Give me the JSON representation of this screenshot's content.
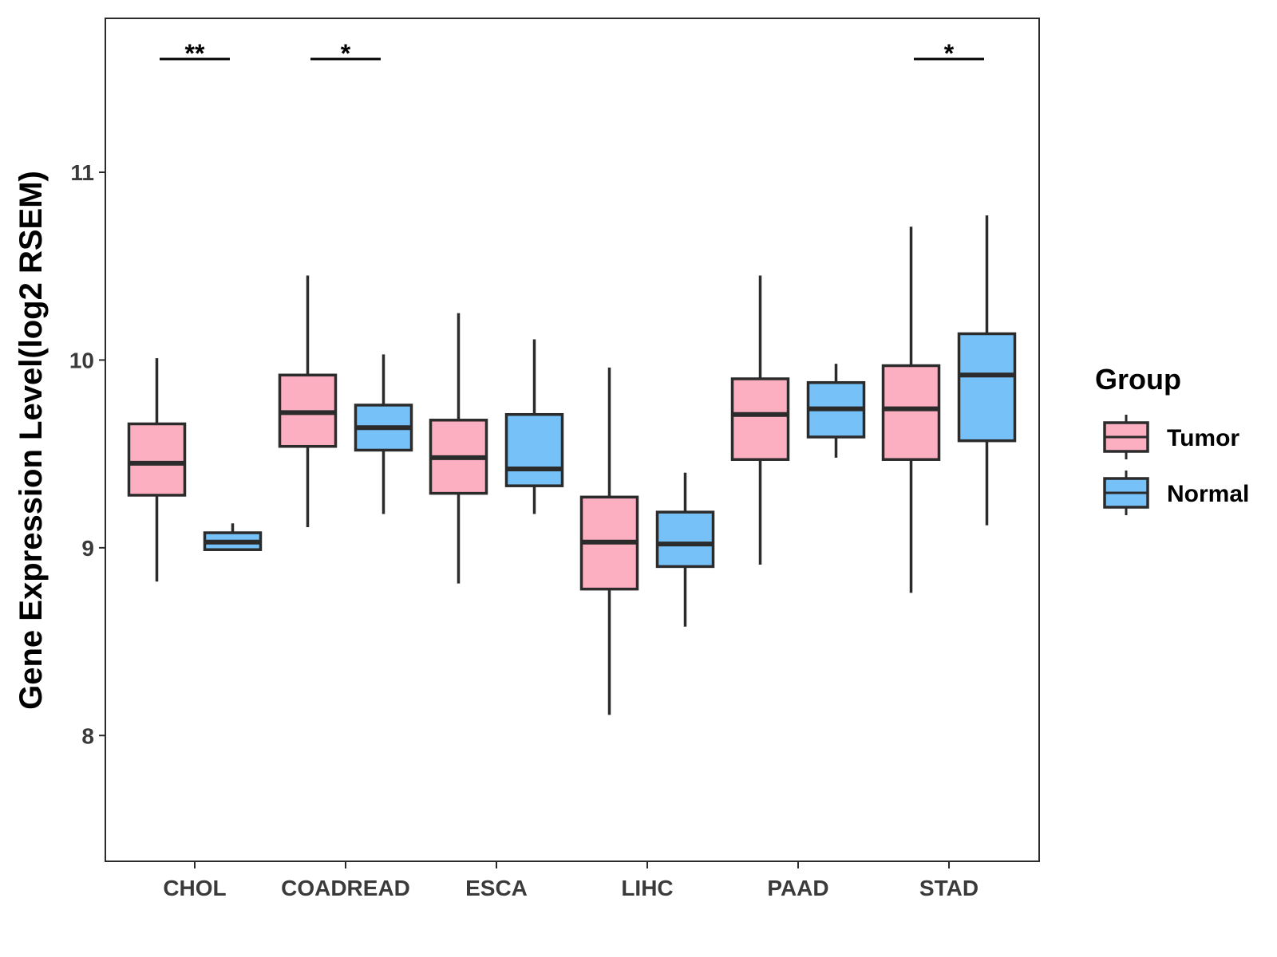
{
  "chart_data": {
    "type": "boxplot",
    "title": "",
    "xlabel": "",
    "ylabel": "Gene Expression Level(log2 RSEM)",
    "ylim": [
      7.33,
      11.82
    ],
    "yticks": [
      8,
      9,
      10,
      11
    ],
    "grid": false,
    "legend": {
      "title": "Group",
      "placement": "right"
    },
    "categories": [
      "CHOL",
      "COADREAD",
      "ESCA",
      "LIHC",
      "PAAD",
      "STAD"
    ],
    "series": [
      {
        "name": "Tumor",
        "color": "#FBAFC1",
        "boxes": [
          {
            "min": 8.82,
            "q1": 9.28,
            "median": 9.45,
            "q3": 9.66,
            "max": 10.01
          },
          {
            "min": 9.11,
            "q1": 9.54,
            "median": 9.72,
            "q3": 9.92,
            "max": 10.45
          },
          {
            "min": 8.81,
            "q1": 9.29,
            "median": 9.48,
            "q3": 9.68,
            "max": 10.25
          },
          {
            "min": 8.11,
            "q1": 8.78,
            "median": 9.03,
            "q3": 9.27,
            "max": 9.96
          },
          {
            "min": 8.91,
            "q1": 9.47,
            "median": 9.71,
            "q3": 9.9,
            "max": 10.45
          },
          {
            "min": 8.76,
            "q1": 9.47,
            "median": 9.74,
            "q3": 9.97,
            "max": 10.71
          }
        ]
      },
      {
        "name": "Normal",
        "color": "#76C1F7",
        "boxes": [
          {
            "min": 8.99,
            "q1": 8.99,
            "median": 9.03,
            "q3": 9.08,
            "max": 9.13
          },
          {
            "min": 9.18,
            "q1": 9.52,
            "median": 9.64,
            "q3": 9.76,
            "max": 10.03
          },
          {
            "min": 9.18,
            "q1": 9.33,
            "median": 9.42,
            "q3": 9.71,
            "max": 10.11
          },
          {
            "min": 8.58,
            "q1": 8.9,
            "median": 9.02,
            "q3": 9.19,
            "max": 9.4
          },
          {
            "min": 9.48,
            "q1": 9.59,
            "median": 9.74,
            "q3": 9.88,
            "max": 9.98
          },
          {
            "min": 9.12,
            "q1": 9.57,
            "median": 9.92,
            "q3": 10.14,
            "max": 10.77
          }
        ]
      }
    ],
    "annotations": [
      {
        "category": "CHOL",
        "label": "**"
      },
      {
        "category": "COADREAD",
        "label": "*"
      },
      {
        "category": "STAD",
        "label": "*"
      }
    ]
  }
}
